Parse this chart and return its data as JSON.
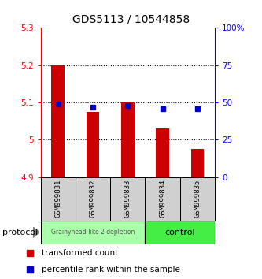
{
  "title": "GDS5113 / 10544858",
  "samples": [
    "GSM999831",
    "GSM999832",
    "GSM999833",
    "GSM999834",
    "GSM999835"
  ],
  "transformed_counts": [
    5.2,
    5.075,
    5.1,
    5.03,
    4.975
  ],
  "percentile_ranks": [
    49,
    47,
    48,
    46,
    46
  ],
  "baseline": 4.9,
  "ylim_left": [
    4.9,
    5.3
  ],
  "ylim_right": [
    0,
    100
  ],
  "yticks_left": [
    4.9,
    5.0,
    5.1,
    5.2,
    5.3
  ],
  "yticks_right": [
    0,
    25,
    50,
    75,
    100
  ],
  "ytick_labels_left": [
    "4.9",
    "5",
    "5.1",
    "5.2",
    "5.3"
  ],
  "ytick_labels_right": [
    "0",
    "25",
    "50",
    "75",
    "100%"
  ],
  "bar_color": "#cc0000",
  "dot_color": "#0000cc",
  "group1_label": "Grainyhead-like 2 depletion",
  "group2_label": "control",
  "group1_bg": "#aaffaa",
  "group2_bg": "#44ee44",
  "protocol_label": "protocol",
  "legend_bar_label": "transformed count",
  "legend_dot_label": "percentile rank within the sample",
  "bg_color": "#ffffff",
  "plot_bg": "#ffffff",
  "grid_yticks": [
    5.0,
    5.1,
    5.2
  ]
}
